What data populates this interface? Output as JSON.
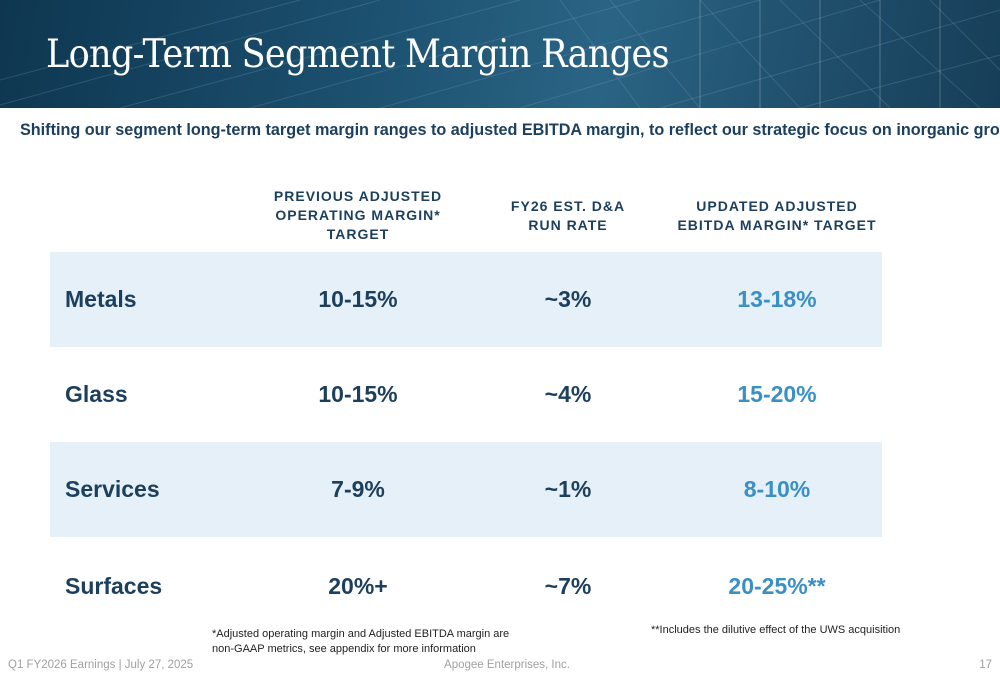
{
  "title": "Long-Term Segment Margin Ranges",
  "subtitle": "Shifting our segment long-term target margin ranges to adjusted EBITDA margin, to reflect our strategic focus on inorganic growth",
  "table": {
    "headers": [
      "",
      "PREVIOUS ADJUSTED\nOPERATING MARGIN*\nTARGET",
      "FY26 EST. D&A\nRUN RATE",
      "UPDATED ADJUSTED\nEBITDA MARGIN* TARGET"
    ],
    "rows": [
      {
        "segment": "Metals",
        "previous": "10-15%",
        "da": "~3%",
        "updated": "13-18%"
      },
      {
        "segment": "Glass",
        "previous": "10-15%",
        "da": "~4%",
        "updated": "15-20%"
      },
      {
        "segment": "Services",
        "previous": "7-9%",
        "da": "~1%",
        "updated": "8-10%"
      },
      {
        "segment": "Surfaces",
        "previous": "20%+",
        "da": "~7%",
        "updated": "20-25%**"
      }
    ]
  },
  "footnotes": {
    "non_gaap": "*Adjusted operating margin and Adjusted EBITDA margin are\nnon-GAAP metrics, see appendix for more information",
    "uws": "**Includes the dilutive effect of the UWS acquisition"
  },
  "footer": {
    "left": "Q1 FY2026 Earnings | July 27, 2025",
    "center": "Apogee Enterprises, Inc.",
    "page": "17"
  },
  "colors": {
    "banner": "#1b4f6e",
    "heading": "#1b3f5c",
    "accent": "#3a8fc4",
    "row_shade": "#e5f0f8"
  }
}
